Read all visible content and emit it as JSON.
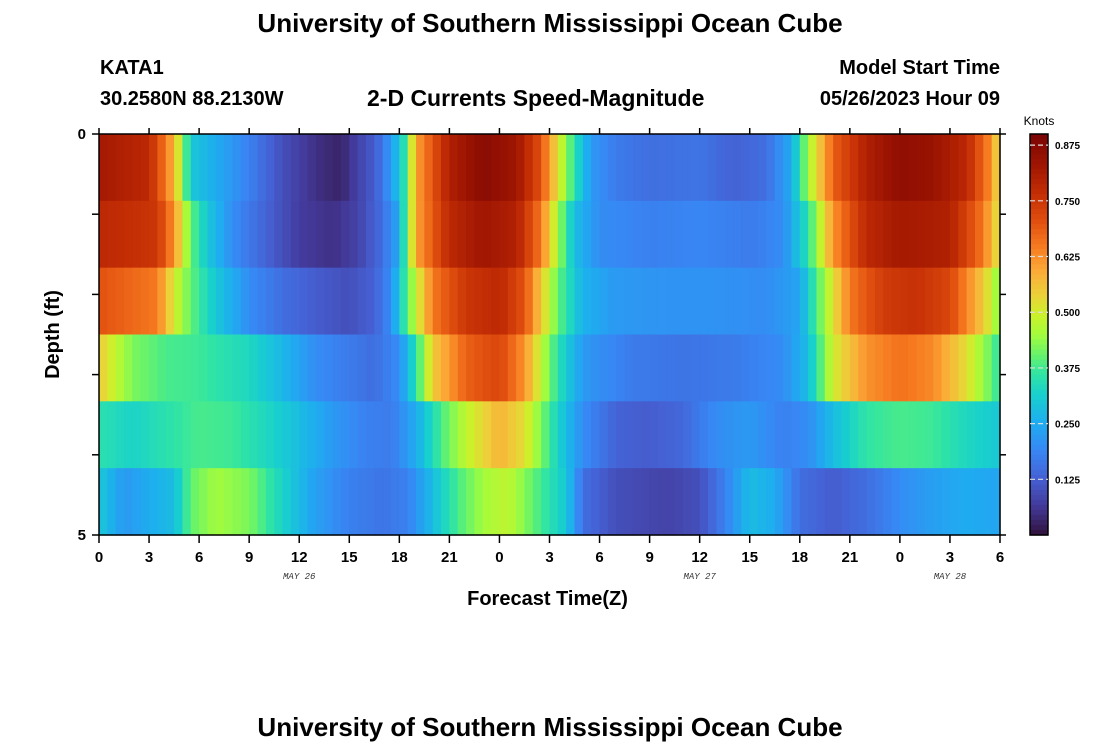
{
  "header": {
    "title": "University of Southern Mississippi Ocean Cube",
    "station": "KATA1",
    "coords": "30.2580N  88.2130W",
    "subtitle": "2-D Currents Speed-Magnitude",
    "model_start_label": "Model Start Time",
    "model_start_value": "05/26/2023 Hour 09"
  },
  "footer": {
    "title": "University of Southern Mississippi Ocean Cube"
  },
  "chart_data": {
    "type": "heatmap",
    "title": "2-D Currents Speed-Magnitude",
    "xlabel": "Forecast Time(Z)",
    "ylabel": "Depth (ft)",
    "colorbar_label": "Knots",
    "colorbar_ticks": [
      "0.875",
      "0.750",
      "0.625",
      "0.500",
      "0.375",
      "0.250",
      "0.125"
    ],
    "colorbar_tick_values": [
      0.875,
      0.75,
      0.625,
      0.5,
      0.375,
      0.25,
      0.125
    ],
    "colorbar_range": [
      0.0,
      0.9
    ],
    "colormap": "turbo",
    "x_tick_labels": [
      "0",
      "3",
      "6",
      "9",
      "12",
      "15",
      "18",
      "21",
      "0",
      "3",
      "6",
      "9",
      "12",
      "15",
      "18",
      "21",
      "0",
      "3",
      "6"
    ],
    "x_tick_hours": [
      0,
      3,
      6,
      9,
      12,
      15,
      18,
      21,
      24,
      27,
      30,
      33,
      36,
      39,
      42,
      45,
      48,
      51,
      54
    ],
    "x_range_hours": [
      0,
      54
    ],
    "date_labels": [
      {
        "text": "MAY 26",
        "hour": 12
      },
      {
        "text": "MAY 27",
        "hour": 36
      },
      {
        "text": "MAY 28",
        "hour": 51
      }
    ],
    "y_tick_labels": [
      "0",
      "5"
    ],
    "y_range": [
      0,
      5
    ],
    "depth_layers": [
      0,
      1,
      2,
      3,
      4,
      5
    ],
    "cell_hours": 0.5,
    "profiles": [
      [
        [
          0,
          0.82
        ],
        [
          3,
          0.78
        ],
        [
          4.5,
          0.58
        ],
        [
          5.5,
          0.3
        ],
        [
          7,
          0.25
        ],
        [
          9,
          0.18
        ],
        [
          11,
          0.1
        ],
        [
          13,
          0.05
        ],
        [
          14.5,
          0.03
        ],
        [
          15.5,
          0.08
        ],
        [
          16.5,
          0.12
        ],
        [
          17.5,
          0.22
        ],
        [
          18.3,
          0.35
        ],
        [
          19,
          0.6
        ],
        [
          21,
          0.8
        ],
        [
          23,
          0.87
        ],
        [
          25,
          0.83
        ],
        [
          26.5,
          0.7
        ],
        [
          27.5,
          0.52
        ],
        [
          28.5,
          0.35
        ],
        [
          29.5,
          0.22
        ],
        [
          31,
          0.17
        ],
        [
          33,
          0.15
        ],
        [
          36,
          0.16
        ],
        [
          38,
          0.13
        ],
        [
          40,
          0.15
        ],
        [
          41.5,
          0.25
        ],
        [
          42.5,
          0.45
        ],
        [
          44,
          0.68
        ],
        [
          46,
          0.8
        ],
        [
          48,
          0.86
        ],
        [
          50,
          0.84
        ],
        [
          52,
          0.78
        ],
        [
          53.5,
          0.62
        ],
        [
          54,
          0.5
        ]
      ],
      [
        [
          0,
          0.78
        ],
        [
          3.5,
          0.75
        ],
        [
          4.5,
          0.62
        ],
        [
          5.5,
          0.4
        ],
        [
          6.5,
          0.3
        ],
        [
          8,
          0.2
        ],
        [
          10,
          0.13
        ],
        [
          12,
          0.07
        ],
        [
          14,
          0.05
        ],
        [
          15.5,
          0.08
        ],
        [
          17,
          0.15
        ],
        [
          18,
          0.25
        ],
        [
          19,
          0.6
        ],
        [
          21,
          0.78
        ],
        [
          23,
          0.83
        ],
        [
          25,
          0.8
        ],
        [
          26.5,
          0.65
        ],
        [
          27.5,
          0.45
        ],
        [
          28.5,
          0.28
        ],
        [
          30,
          0.2
        ],
        [
          33,
          0.18
        ],
        [
          36,
          0.19
        ],
        [
          39,
          0.17
        ],
        [
          41,
          0.2
        ],
        [
          42.5,
          0.35
        ],
        [
          44,
          0.62
        ],
        [
          46,
          0.78
        ],
        [
          48,
          0.82
        ],
        [
          51,
          0.8
        ],
        [
          53,
          0.65
        ],
        [
          54,
          0.5
        ]
      ],
      [
        [
          0,
          0.7
        ],
        [
          3.5,
          0.65
        ],
        [
          4.5,
          0.5
        ],
        [
          5.5,
          0.4
        ],
        [
          7,
          0.3
        ],
        [
          9,
          0.2
        ],
        [
          11,
          0.15
        ],
        [
          13,
          0.12
        ],
        [
          15,
          0.1
        ],
        [
          16.5,
          0.13
        ],
        [
          17.5,
          0.2
        ],
        [
          18.5,
          0.4
        ],
        [
          20,
          0.65
        ],
        [
          22,
          0.75
        ],
        [
          24,
          0.78
        ],
        [
          25.5,
          0.7
        ],
        [
          26.5,
          0.55
        ],
        [
          27.5,
          0.4
        ],
        [
          29,
          0.26
        ],
        [
          31,
          0.22
        ],
        [
          34,
          0.21
        ],
        [
          37,
          0.21
        ],
        [
          40,
          0.2
        ],
        [
          42,
          0.24
        ],
        [
          43.5,
          0.45
        ],
        [
          45,
          0.65
        ],
        [
          47,
          0.74
        ],
        [
          49,
          0.76
        ],
        [
          51,
          0.72
        ],
        [
          53,
          0.55
        ],
        [
          54,
          0.42
        ]
      ],
      [
        [
          0,
          0.55
        ],
        [
          1,
          0.48
        ],
        [
          2,
          0.42
        ],
        [
          4,
          0.38
        ],
        [
          6,
          0.37
        ],
        [
          9,
          0.33
        ],
        [
          11,
          0.27
        ],
        [
          13,
          0.2
        ],
        [
          15,
          0.17
        ],
        [
          16.5,
          0.15
        ],
        [
          18,
          0.2
        ],
        [
          19,
          0.35
        ],
        [
          20,
          0.55
        ],
        [
          22,
          0.68
        ],
        [
          24,
          0.72
        ],
        [
          25.5,
          0.62
        ],
        [
          26.5,
          0.48
        ],
        [
          27.5,
          0.35
        ],
        [
          29,
          0.22
        ],
        [
          32,
          0.17
        ],
        [
          35,
          0.16
        ],
        [
          38,
          0.17
        ],
        [
          41,
          0.2
        ],
        [
          42.5,
          0.28
        ],
        [
          44,
          0.5
        ],
        [
          46,
          0.62
        ],
        [
          48,
          0.66
        ],
        [
          50,
          0.63
        ],
        [
          52,
          0.52
        ],
        [
          53.5,
          0.4
        ],
        [
          54,
          0.35
        ]
      ],
      [
        [
          0,
          0.35
        ],
        [
          2,
          0.32
        ],
        [
          4,
          0.35
        ],
        [
          6,
          0.38
        ],
        [
          8,
          0.37
        ],
        [
          10,
          0.33
        ],
        [
          12,
          0.28
        ],
        [
          14,
          0.22
        ],
        [
          16,
          0.18
        ],
        [
          17.5,
          0.17
        ],
        [
          19,
          0.25
        ],
        [
          20.5,
          0.38
        ],
        [
          22,
          0.48
        ],
        [
          24,
          0.58
        ],
        [
          25.5,
          0.52
        ],
        [
          26.5,
          0.42
        ],
        [
          27.5,
          0.32
        ],
        [
          29,
          0.2
        ],
        [
          31,
          0.13
        ],
        [
          33,
          0.12
        ],
        [
          35,
          0.14
        ],
        [
          37,
          0.2
        ],
        [
          39,
          0.22
        ],
        [
          41,
          0.18
        ],
        [
          42.5,
          0.2
        ],
        [
          44,
          0.28
        ],
        [
          46,
          0.36
        ],
        [
          48,
          0.38
        ],
        [
          50,
          0.37
        ],
        [
          52,
          0.33
        ],
        [
          54,
          0.3
        ]
      ],
      [
        [
          0,
          0.3
        ],
        [
          1.5,
          0.22
        ],
        [
          3,
          0.25
        ],
        [
          4.5,
          0.28
        ],
        [
          5.5,
          0.4
        ],
        [
          7,
          0.45
        ],
        [
          9,
          0.42
        ],
        [
          11,
          0.32
        ],
        [
          13,
          0.23
        ],
        [
          15,
          0.18
        ],
        [
          17,
          0.16
        ],
        [
          18.5,
          0.18
        ],
        [
          20,
          0.28
        ],
        [
          21.5,
          0.38
        ],
        [
          23,
          0.45
        ],
        [
          24.5,
          0.48
        ],
        [
          26,
          0.4
        ],
        [
          27,
          0.35
        ],
        [
          28,
          0.3
        ],
        [
          29,
          0.15
        ],
        [
          31,
          0.1
        ],
        [
          34,
          0.08
        ],
        [
          36,
          0.1
        ],
        [
          37.5,
          0.18
        ],
        [
          39,
          0.28
        ],
        [
          40.5,
          0.25
        ],
        [
          42,
          0.15
        ],
        [
          44,
          0.12
        ],
        [
          46,
          0.15
        ],
        [
          48,
          0.2
        ],
        [
          50,
          0.23
        ],
        [
          52,
          0.25
        ],
        [
          54,
          0.24
        ]
      ]
    ]
  }
}
